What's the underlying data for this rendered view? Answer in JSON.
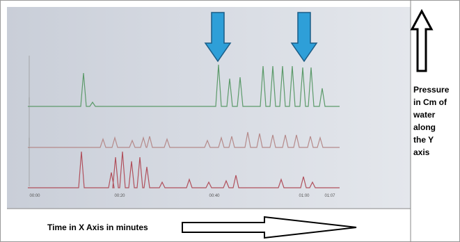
{
  "annotations": {
    "y_axis": [
      "Pressure",
      "in Cm of",
      "water",
      "along",
      "the Y",
      "axis"
    ],
    "x_axis": "Time in X Axis in minutes"
  },
  "time_labels": [
    "00:00",
    "00:20",
    "00:40",
    "01:00",
    "01:07"
  ]
}
